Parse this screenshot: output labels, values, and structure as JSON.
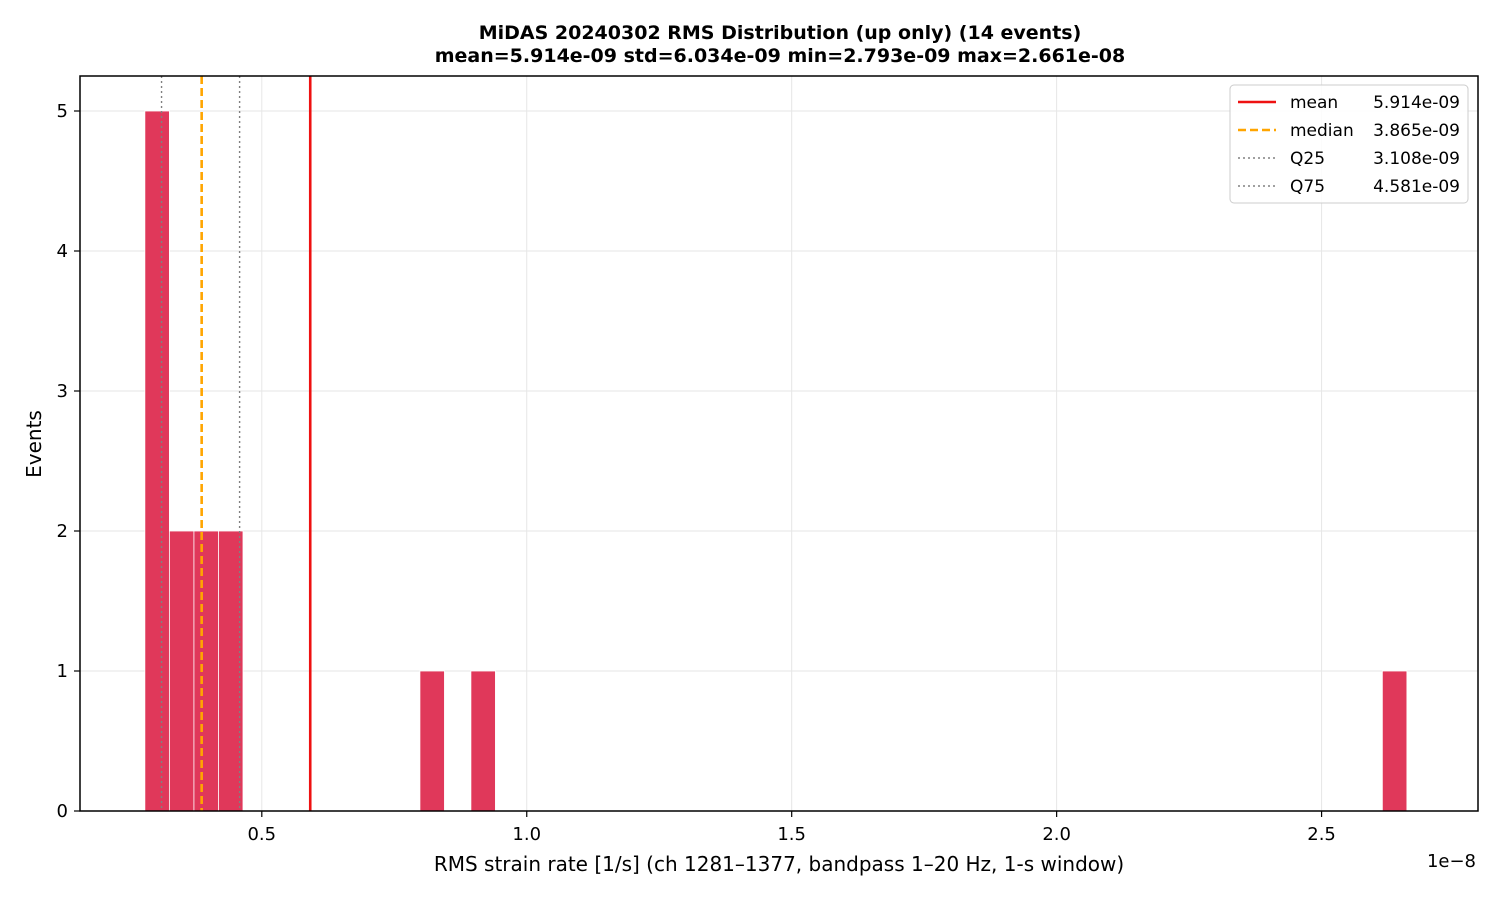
{
  "chart_data": {
    "type": "bar",
    "title_line1": "MiDAS 20240302  RMS Distribution  (up only)  (14 events)",
    "title_line2": "mean=5.914e-09  std=6.034e-09  min=2.793e-09  max=2.661e-08",
    "xlabel": "RMS strain rate [1/s]  (ch 1281–1377, bandpass 1–20 Hz, 1-s window)",
    "ylabel": "Events",
    "x_offset_text": "1e−8",
    "x_scale": 1e-08,
    "xlim": [
      0.1569,
      2.7952
    ],
    "ylim": [
      0,
      5.25
    ],
    "x_ticks": [
      0.5,
      1.0,
      1.5,
      2.0,
      2.5
    ],
    "x_tick_labels": [
      "0.5",
      "1.0",
      "1.5",
      "2.0",
      "2.5"
    ],
    "y_ticks": [
      0,
      1,
      2,
      3,
      4,
      5
    ],
    "y_tick_labels": [
      "0",
      "1",
      "2",
      "3",
      "4",
      "5"
    ],
    "grid": true,
    "bar_color": "#e0385a",
    "bins": [
      {
        "x0": 0.2793,
        "x1": 0.3256,
        "count": 5
      },
      {
        "x0": 0.3256,
        "x1": 0.3719,
        "count": 2
      },
      {
        "x0": 0.3719,
        "x1": 0.4182,
        "count": 2
      },
      {
        "x0": 0.4182,
        "x1": 0.4645,
        "count": 2
      },
      {
        "x0": 0.7984,
        "x1": 0.8447,
        "count": 1
      },
      {
        "x0": 0.8946,
        "x1": 0.9409,
        "count": 1
      },
      {
        "x0": 2.6147,
        "x1": 2.661,
        "count": 1
      }
    ],
    "vlines": [
      {
        "name": "mean",
        "value": 0.5914,
        "color": "#ee1111",
        "style": "solid"
      },
      {
        "name": "median",
        "value": 0.3865,
        "color": "#ffa500",
        "style": "dashed"
      },
      {
        "name": "Q25",
        "value": 0.3108,
        "color": "#808080",
        "style": "dotted"
      },
      {
        "name": "Q75",
        "value": 0.4581,
        "color": "#808080",
        "style": "dotted"
      }
    ],
    "legend": {
      "location": "top-right",
      "entries": [
        {
          "label": "mean",
          "value": "5.914e-09",
          "color": "#ee1111",
          "style": "solid"
        },
        {
          "label": "median",
          "value": "3.865e-09",
          "color": "#ffa500",
          "style": "dashed"
        },
        {
          "label": "Q25",
          "value": "3.108e-09",
          "color": "#808080",
          "style": "dotted"
        },
        {
          "label": "Q75",
          "value": "4.581e-09",
          "color": "#808080",
          "style": "dotted"
        }
      ]
    }
  }
}
